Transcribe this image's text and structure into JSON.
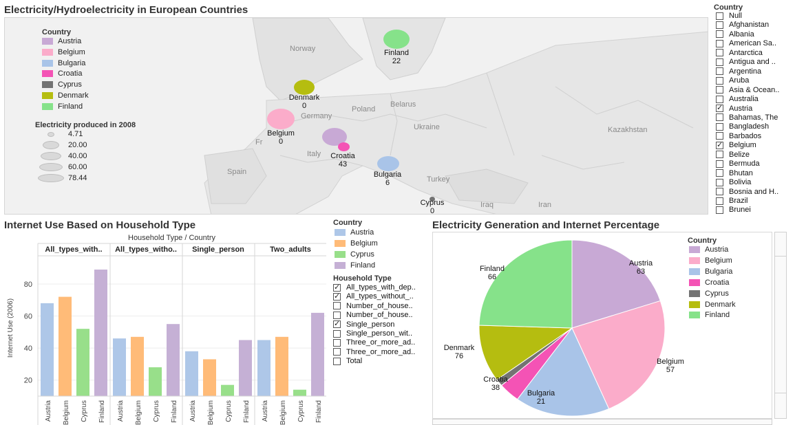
{
  "titles": {
    "map": "Electricity/Hydroelectricity in European Countries",
    "bar": "Internet Use Based on Household Type",
    "pie": "Electricity Generation and Internet Percentage"
  },
  "map": {
    "legend_title": "Country",
    "legend": [
      {
        "name": "Austria",
        "color": "#c8a9d5"
      },
      {
        "name": "Belgium",
        "color": "#fbacca"
      },
      {
        "name": "Bulgaria",
        "color": "#a9c4e8"
      },
      {
        "name": "Croatia",
        "color": "#f453b5"
      },
      {
        "name": "Cyprus",
        "color": "#737373"
      },
      {
        "name": "Denmark",
        "color": "#b5bd10"
      },
      {
        "name": "Finland",
        "color": "#86e28a"
      }
    ],
    "size_legend_title": "Electricity produced in 2008",
    "size_legend": [
      "4.71",
      "20.00",
      "40.00",
      "60.00",
      "78.44"
    ],
    "place_labels": [
      "Norway",
      "Poland",
      "Belarus",
      "Germany",
      "Ukraine",
      "Kazakhstan",
      "Fr",
      "Italy",
      "Spain",
      "Turkey",
      "Iraq",
      "Iran"
    ],
    "bubbles": [
      {
        "name": "Finland",
        "value": "22",
        "color": "#86e28a"
      },
      {
        "name": "Denmark",
        "value": "0",
        "color": "#b5bd10"
      },
      {
        "name": "Belgium",
        "value": "0",
        "color": "#fbacca"
      },
      {
        "name": "Croatia",
        "value": "43",
        "color": "#f453b5"
      },
      {
        "name": "Bulgaria",
        "value": "6",
        "color": "#a9c4e8"
      },
      {
        "name": "Cyprus",
        "value": "0",
        "color": "#737373"
      }
    ]
  },
  "country_filter": {
    "title": "Country",
    "items": [
      {
        "label": "Null",
        "checked": false
      },
      {
        "label": "Afghanistan",
        "checked": false
      },
      {
        "label": "Albania",
        "checked": false
      },
      {
        "label": "American Sa..",
        "checked": false
      },
      {
        "label": "Antarctica",
        "checked": false
      },
      {
        "label": "Antigua and ..",
        "checked": false
      },
      {
        "label": "Argentina",
        "checked": false
      },
      {
        "label": "Aruba",
        "checked": false
      },
      {
        "label": "Asia & Ocean..",
        "checked": false
      },
      {
        "label": "Australia",
        "checked": false
      },
      {
        "label": "Austria",
        "checked": true
      },
      {
        "label": "Bahamas, The",
        "checked": false
      },
      {
        "label": "Bangladesh",
        "checked": false
      },
      {
        "label": "Barbados",
        "checked": false
      },
      {
        "label": "Belgium",
        "checked": true
      },
      {
        "label": "Belize",
        "checked": false
      },
      {
        "label": "Bermuda",
        "checked": false
      },
      {
        "label": "Bhutan",
        "checked": false
      },
      {
        "label": "Bolivia",
        "checked": false
      },
      {
        "label": "Bosnia and H..",
        "checked": false
      },
      {
        "label": "Brazil",
        "checked": false
      },
      {
        "label": "Brunei",
        "checked": false
      }
    ]
  },
  "bar": {
    "header": "Household Type  /  Country",
    "legend_title": "Country",
    "legend": [
      {
        "name": "Austria",
        "color": "#aec7e8"
      },
      {
        "name": "Belgium",
        "color": "#ffbb78"
      },
      {
        "name": "Cyprus",
        "color": "#98df8a"
      },
      {
        "name": "Finland",
        "color": "#c5b0d5"
      }
    ],
    "household_title": "Household Type",
    "household_items": [
      {
        "label": "All_types_with_dep..",
        "checked": true
      },
      {
        "label": "All_types_without_..",
        "checked": true
      },
      {
        "label": "Number_of_house..",
        "checked": false
      },
      {
        "label": "Number_of_house..",
        "checked": false
      },
      {
        "label": "Single_person",
        "checked": true
      },
      {
        "label": "Single_person_wit..",
        "checked": false
      },
      {
        "label": "Three_or_more_ad..",
        "checked": false
      },
      {
        "label": "Three_or_more_ad..",
        "checked": false
      },
      {
        "label": "Total",
        "checked": false
      }
    ]
  },
  "pie": {
    "legend_title": "Country",
    "legend": [
      {
        "name": "Austria",
        "color": "#c8a9d5"
      },
      {
        "name": "Belgium",
        "color": "#fbacca"
      },
      {
        "name": "Bulgaria",
        "color": "#a9c4e8"
      },
      {
        "name": "Croatia",
        "color": "#f453b5"
      },
      {
        "name": "Cyprus",
        "color": "#737373"
      },
      {
        "name": "Denmark",
        "color": "#b5bd10"
      },
      {
        "name": "Finland",
        "color": "#86e28a"
      }
    ]
  },
  "chart_data": [
    {
      "type": "bar",
      "title": "Internet Use Based on Household Type",
      "ylabel": "Internet Use (2006)",
      "ylim": [
        10,
        95
      ],
      "yticks": [
        20,
        40,
        60,
        80
      ],
      "panels": [
        "All_types_with..",
        "All_types_witho..",
        "Single_person",
        "Two_adults"
      ],
      "categories": [
        "Austria",
        "Belgium",
        "Cyprus",
        "Finland"
      ],
      "colors": [
        "#aec7e8",
        "#ffbb78",
        "#98df8a",
        "#c5b0d5"
      ],
      "series": [
        {
          "panel": "All_types_with..",
          "values": [
            68,
            72,
            52,
            89
          ]
        },
        {
          "panel": "All_types_witho..",
          "values": [
            46,
            47,
            28,
            55
          ]
        },
        {
          "panel": "Single_person",
          "values": [
            38,
            33,
            17,
            45
          ]
        },
        {
          "panel": "Two_adults",
          "values": [
            45,
            47,
            14,
            62
          ]
        }
      ],
      "grid": true
    },
    {
      "type": "pie",
      "title": "Electricity Generation and Internet Percentage",
      "labels": [
        "Austria",
        "Belgium",
        "Bulgaria",
        "Croatia",
        "Cyprus",
        "Denmark",
        "Finland"
      ],
      "values": [
        63,
        57,
        21,
        38,
        0,
        76,
        66
      ],
      "slice_fractions": [
        0.2,
        0.235,
        0.165,
        0.037,
        0.013,
        0.105,
        0.245
      ],
      "colors": [
        "#c8a9d5",
        "#fbacca",
        "#a9c4e8",
        "#f453b5",
        "#737373",
        "#b5bd10",
        "#86e28a"
      ],
      "legend": "right"
    }
  ]
}
